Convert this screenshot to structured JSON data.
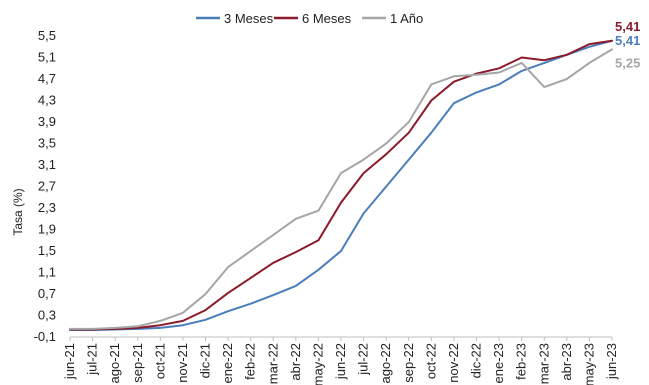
{
  "chart_data": {
    "type": "line",
    "title": "",
    "xlabel": "",
    "ylabel": "Tasa (%)",
    "ylim": [
      -0.1,
      5.5
    ],
    "yticks": [
      "-0,1",
      "0,3",
      "0,7",
      "1,1",
      "1,5",
      "1,9",
      "2,3",
      "2,7",
      "3,1",
      "3,5",
      "3,9",
      "4,3",
      "4,7",
      "5,1",
      "5,5"
    ],
    "categories": [
      "jun-21",
      "jul-21",
      "ago-21",
      "sep-21",
      "oct-21",
      "nov-21",
      "dic-21",
      "ene-22",
      "feb-22",
      "mar-22",
      "abr-22",
      "may-22",
      "jun-22",
      "jul-22",
      "ago-22",
      "sep-22",
      "oct-22",
      "nov-22",
      "dic-22",
      "ene-23",
      "feb-23",
      "mar-23",
      "abr-23",
      "may-23",
      "jun-23"
    ],
    "grid": false,
    "legend_position": "top",
    "series": [
      {
        "name": "3 Meses",
        "color": "#4a7ebb",
        "end_label": "5,41",
        "values": [
          0.03,
          0.03,
          0.04,
          0.05,
          0.07,
          0.12,
          0.22,
          0.38,
          0.52,
          0.68,
          0.85,
          1.15,
          1.5,
          2.2,
          2.7,
          3.2,
          3.7,
          4.25,
          4.45,
          4.6,
          4.85,
          5.0,
          5.15,
          5.3,
          5.41
        ]
      },
      {
        "name": "6 Meses",
        "color": "#8b1a2b",
        "end_label": "5,41",
        "values": [
          0.04,
          0.04,
          0.05,
          0.07,
          0.12,
          0.2,
          0.4,
          0.72,
          1.0,
          1.28,
          1.48,
          1.7,
          2.4,
          2.95,
          3.3,
          3.7,
          4.3,
          4.65,
          4.8,
          4.9,
          5.1,
          5.05,
          5.15,
          5.35,
          5.41
        ]
      },
      {
        "name": "1 Año",
        "color": "#a6a6a6",
        "end_label": "5,25",
        "values": [
          0.05,
          0.05,
          0.07,
          0.1,
          0.2,
          0.35,
          0.7,
          1.2,
          1.5,
          1.8,
          2.1,
          2.25,
          2.95,
          3.2,
          3.5,
          3.9,
          4.6,
          4.75,
          4.78,
          4.82,
          5.0,
          4.55,
          4.7,
          5.0,
          5.25
        ]
      }
    ]
  }
}
